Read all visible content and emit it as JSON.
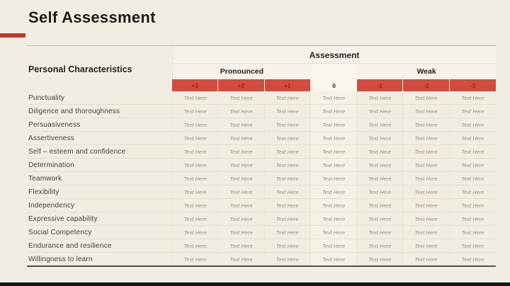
{
  "slide": {
    "title": "Self Assessment",
    "colors": {
      "background": "#f2ede3",
      "accent_red": "#c0392b",
      "header_red": "#d24b3e",
      "header_red_text": "#8a2720",
      "footer_bar": "#15151d"
    }
  },
  "table": {
    "row_header": "Personal Characteristics",
    "group_header": "Assessment",
    "pronounced_label": "Pronounced",
    "weak_label": "Weak",
    "columns": [
      "+3",
      "+2",
      "+1",
      "0",
      "-1",
      "-2",
      "-3"
    ],
    "rows": [
      "Punctuality",
      "Diligence and thoroughness",
      "Persuasiveness",
      "Assertiveness",
      "Self – esteem and confidence",
      "Determination",
      "Teamwork",
      "Flexibility",
      "Independency",
      "Expressive capability",
      "Social Competency",
      "Endurance and resilience",
      "Willingness to learn"
    ],
    "cell_text": "Text Here"
  }
}
